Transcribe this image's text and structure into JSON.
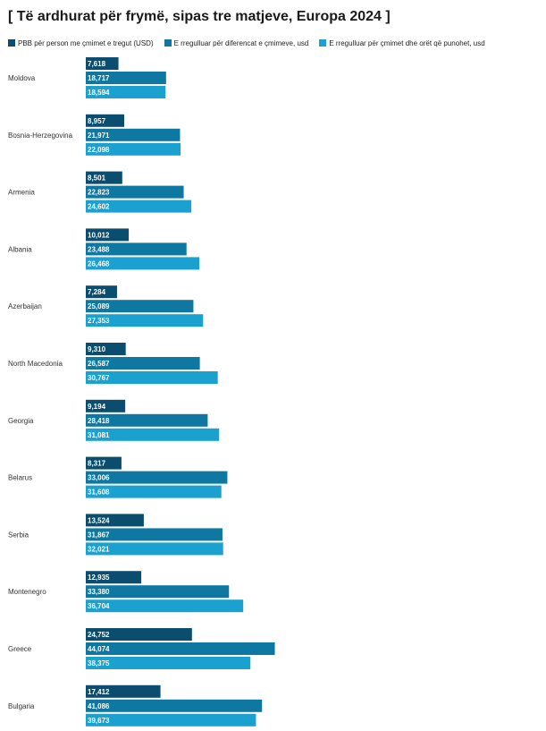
{
  "chart_data": {
    "type": "bar",
    "orientation": "horizontal",
    "title": "[ Të ardhurat për frymë, sipas tre matjeve, Europa 2024 ]",
    "legend_position": "top",
    "grid": false,
    "xlim": [
      0,
      50000
    ],
    "categories": [
      "Moldova",
      "Bosnia-Herzegovina",
      "Armenia",
      "Albania",
      "Azerbaijan",
      "North Macedonia",
      "Georgia",
      "Belarus",
      "Serbia",
      "Montenegro",
      "Greece",
      "Bulgaria"
    ],
    "series": [
      {
        "name": "PBB për person me çmimet e tregut (USD)",
        "color": "#0a4d6e",
        "values": [
          7618,
          8957,
          8501,
          10012,
          7284,
          9310,
          9194,
          8317,
          13524,
          12935,
          24752,
          17412
        ],
        "labels": [
          "7,618",
          "8,957",
          "8,501",
          "10,012",
          "7,284",
          "9,310",
          "9,194",
          "8,317",
          "13,524",
          "12,935",
          "24,752",
          "17,412"
        ]
      },
      {
        "name": "E rregulluar për diferencat e çmimeve, usd",
        "color": "#0e77a2",
        "values": [
          18717,
          21971,
          22823,
          23488,
          25089,
          26587,
          28418,
          33006,
          31867,
          33380,
          44074,
          41086
        ],
        "labels": [
          "18,717",
          "21,971",
          "22,823",
          "23,488",
          "25,089",
          "26,587",
          "28,418",
          "33,006",
          "31,867",
          "33,380",
          "44,074",
          "41,086"
        ]
      },
      {
        "name": "E rregulluar për çmimet dhe orët që punohet, usd",
        "color": "#1aa1cf",
        "values": [
          18594,
          22098,
          24602,
          26468,
          27353,
          30767,
          31081,
          31608,
          32021,
          36704,
          38375,
          39673
        ],
        "labels": [
          "18,594",
          "22,098",
          "24,602",
          "26,468",
          "27,353",
          "30,767",
          "31,081",
          "31,608",
          "32,021",
          "36,704",
          "38,375",
          "39,673"
        ]
      }
    ]
  }
}
